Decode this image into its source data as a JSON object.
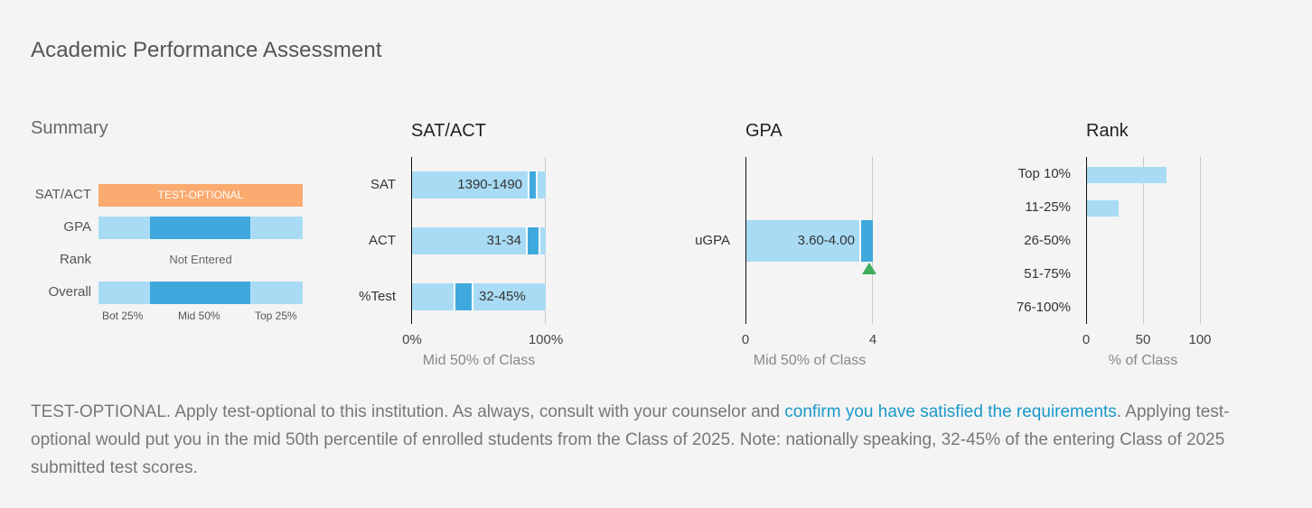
{
  "title": "Academic Performance Assessment",
  "summary": {
    "title": "Summary",
    "rows": [
      {
        "label": "SAT/ACT",
        "value": "TEST-OPTIONAL"
      },
      {
        "label": "GPA"
      },
      {
        "label": "Rank",
        "value": "Not Entered"
      },
      {
        "label": "Overall"
      }
    ],
    "axis": [
      "Bot 25%",
      "Mid 50%",
      "Top 25%"
    ]
  },
  "sat_act": {
    "title": "SAT/ACT",
    "rows": [
      {
        "label": "SAT",
        "range": "1390-1490"
      },
      {
        "label": "ACT",
        "range": "31-34"
      },
      {
        "label": "%Test",
        "range": "32-45%"
      }
    ],
    "ticks": [
      "0%",
      "100%"
    ],
    "caption": "Mid 50% of Class"
  },
  "gpa": {
    "title": "GPA",
    "rows": [
      {
        "label": "uGPA",
        "range": "3.60-4.00"
      }
    ],
    "ticks": [
      "0",
      "4"
    ],
    "caption": "Mid 50% of Class",
    "marker_color": "#3fae5c"
  },
  "rank": {
    "title": "Rank",
    "labels": [
      "Top 10%",
      "11-25%",
      "26-50%",
      "51-75%",
      "76-100%"
    ],
    "values": [
      70,
      28,
      0,
      0,
      0
    ],
    "ticks": [
      "0",
      "50",
      "100"
    ],
    "caption": "% of Class"
  },
  "description": {
    "part1": "TEST-OPTIONAL. Apply test-optional to this institution. As always, consult with your counselor and ",
    "link": "confirm you have satisfied the requirements",
    "part2": ". Applying test-optional would put you in the mid 50th percentile of enrolled students from the Class of 2025. Note: nationally speaking, 32-45% of the entering Class of 2025 submitted test scores."
  },
  "colors": {
    "light_blue": "#a9dcf4",
    "blue": "#3fa9dd",
    "orange": "#fbaa70",
    "link": "#1a98c9"
  }
}
